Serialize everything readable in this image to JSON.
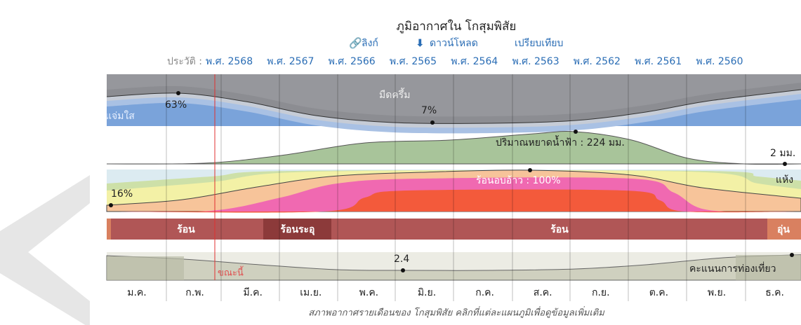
{
  "header": {
    "title": "ภูมิอากาศใน โกสุมพิสัย",
    "links": [
      "ลิงก์",
      "ดาวน์โหลด",
      "เปรียบเทียบ"
    ]
  },
  "history": {
    "label": "ประวัติ :",
    "years": [
      "พ.ศ. 2568",
      "พ.ศ. 2567",
      "พ.ศ. 2566",
      "พ.ศ. 2565",
      "พ.ศ. 2564",
      "พ.ศ. 2563",
      "พ.ศ. 2562",
      "พ.ศ. 2561",
      "พ.ศ. 2560"
    ]
  },
  "clouds": {
    "clear_label": "แจ่มใส",
    "overcast_label": "มืดครึ้ม",
    "labels": [
      "63%",
      "7%"
    ]
  },
  "precipitation": {
    "labels": [
      "ปริมาณหยาดน้ำฟ้า : 224 มม.",
      "2 มม."
    ]
  },
  "temperature": {
    "labels": [
      "16%",
      "ร้อนอบอ้าว : 100%"
    ],
    "dry_label": "แห้ง"
  },
  "seasons": [
    "ร้อน",
    "ร้อนระอุ",
    "ร้อน",
    "อุ่น"
  ],
  "tourism": {
    "label": "2.4",
    "now_label": "ขณะนี้",
    "score_label": "คะแนนการท่องเที่ยว"
  },
  "months": [
    "ม.ค.",
    "ก.พ.",
    "มี.ค.",
    "เม.ย.",
    "พ.ค.",
    "มิ.ย.",
    "ก.ค.",
    "ส.ค.",
    "ก.ย.",
    "ต.ค.",
    "พ.ย.",
    "ธ.ค."
  ],
  "caption": "สภาพอากาศรายเดือนของ โกสุมพิสัย คลิกที่แต่ละแผนภูมิเพื่อดูข้อมูลเพิ่มเติม"
}
